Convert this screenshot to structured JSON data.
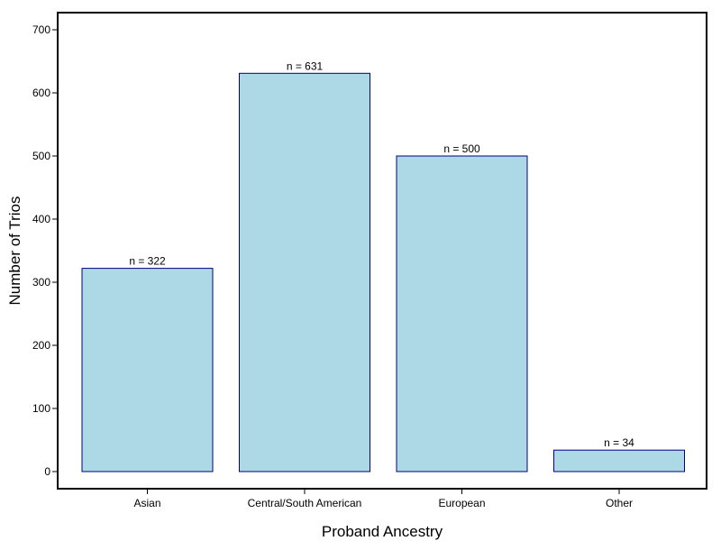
{
  "chart_data": {
    "type": "bar",
    "title": "",
    "xlabel": "Proband Ancestry",
    "ylabel": "Number of Trios",
    "categories": [
      "Asian",
      "Central/South American",
      "European",
      "Other"
    ],
    "values": [
      322,
      631,
      500,
      34
    ],
    "data_labels": [
      "n =  322",
      "n =  631",
      "n =  500",
      "n =  34"
    ],
    "ylim": [
      0,
      700
    ],
    "yticks": [
      0,
      100,
      200,
      300,
      400,
      500,
      600,
      700
    ],
    "grid": false,
    "legend": "none",
    "colors": {
      "bar_fill": "#add8e6",
      "bar_stroke": "#000080",
      "frame": "#000000",
      "background": "#ffffff"
    }
  }
}
